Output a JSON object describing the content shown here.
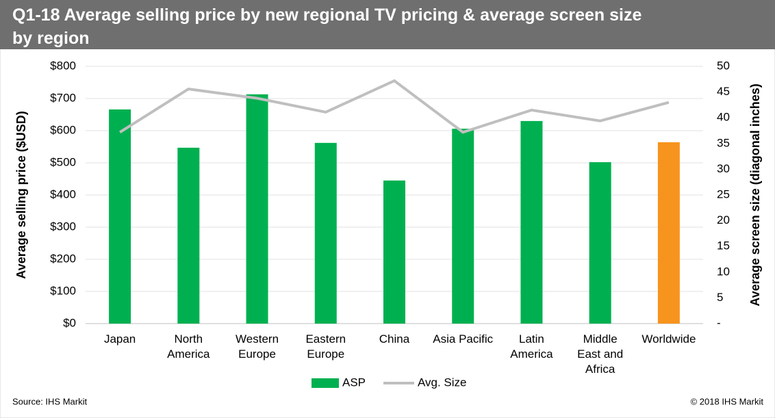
{
  "chart_data": {
    "type": "bar_line",
    "title": [
      "Q1-18 Average selling price by new regional TV pricing & average screen size",
      "by region"
    ],
    "y_label": "Average selling price ($USD)",
    "y2_label": "Average screen size (diagonal inches)",
    "source": "Source: IHS Markit",
    "copyright": "© 2018 IHS Markit",
    "categories": [
      "Japan",
      "North\nAmerica",
      "Western\nEurope",
      "Eastern\nEurope",
      "China",
      "Asia Pacific",
      "Latin\nAmerica",
      "Middle\nEast and\nAfrica",
      "Worldwide"
    ],
    "series": [
      {
        "name": "ASP",
        "type": "bar",
        "color": "#00b050",
        "colors": [
          "#00b050",
          "#00b050",
          "#00b050",
          "#00b050",
          "#00b050",
          "#00b050",
          "#00b050",
          "#00b050",
          "#f7941d"
        ],
        "values": [
          666,
          547,
          713,
          562,
          445,
          606,
          630,
          502,
          564
        ]
      },
      {
        "name": "Avg. Size",
        "type": "line",
        "axis": "y2",
        "color": "#bfbfbf",
        "values": [
          37.2,
          45.6,
          43.8,
          41.1,
          47.2,
          37.2,
          41.5,
          39.4,
          43.0
        ]
      }
    ],
    "ylim": [
      0,
      800
    ],
    "yticks": [
      {
        "value": 0,
        "label": "$0"
      },
      {
        "value": 100,
        "label": "$100"
      },
      {
        "value": 200,
        "label": "$200"
      },
      {
        "value": 300,
        "label": "$300"
      },
      {
        "value": 400,
        "label": "$400"
      },
      {
        "value": 500,
        "label": "$500"
      },
      {
        "value": 600,
        "label": "$600"
      },
      {
        "value": 700,
        "label": "$700"
      },
      {
        "value": 800,
        "label": "$800"
      }
    ],
    "y2lim": [
      0,
      50
    ],
    "y2ticks": [
      {
        "value": 0,
        "label": "-"
      },
      5,
      10,
      15,
      20,
      25,
      30,
      35,
      40,
      45,
      50
    ],
    "grid": true
  }
}
